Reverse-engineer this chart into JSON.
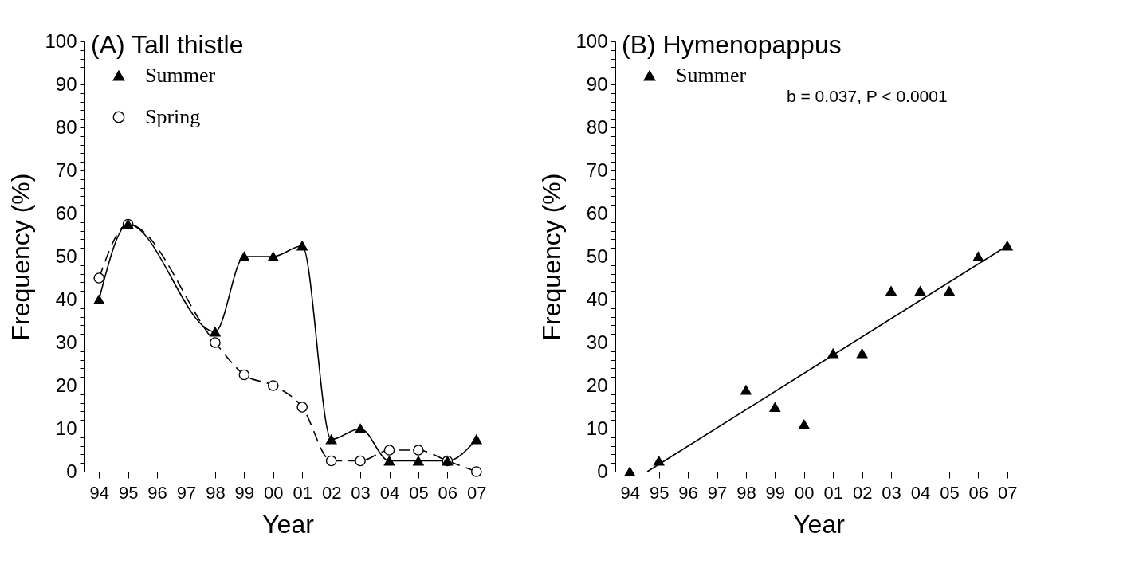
{
  "chart_data": [
    {
      "type": "line",
      "title": "(A) Tall thistle",
      "xlabel": "Year",
      "ylabel": "Frequency (%)",
      "xlim": [
        1993.5,
        2007.5
      ],
      "xticks": [
        {
          "value": 1994,
          "label": "94"
        },
        {
          "value": 1995,
          "label": "95"
        },
        {
          "value": 1996,
          "label": "96"
        },
        {
          "value": 1997,
          "label": "97"
        },
        {
          "value": 1998,
          "label": "98"
        },
        {
          "value": 1999,
          "label": "99"
        },
        {
          "value": 2000,
          "label": "00"
        },
        {
          "value": 2001,
          "label": "01"
        },
        {
          "value": 2002,
          "label": "02"
        },
        {
          "value": 2003,
          "label": "03"
        },
        {
          "value": 2004,
          "label": "04"
        },
        {
          "value": 2005,
          "label": "05"
        },
        {
          "value": 2006,
          "label": "06"
        },
        {
          "value": 2007,
          "label": "07"
        }
      ],
      "ylim": [
        0,
        100
      ],
      "yticks": [
        0,
        {
          "value": 2,
          "label": null
        },
        {
          "value": 4,
          "label": null
        },
        {
          "value": 6,
          "label": null
        },
        {
          "value": 8,
          "label": null
        },
        10,
        {
          "value": 12,
          "label": null
        },
        {
          "value": 14,
          "label": null
        },
        {
          "value": 16,
          "label": null
        },
        {
          "value": 18,
          "label": null
        },
        20,
        {
          "value": 22,
          "label": null
        },
        {
          "value": 24,
          "label": null
        },
        {
          "value": 26,
          "label": null
        },
        {
          "value": 28,
          "label": null
        },
        30,
        {
          "value": 32,
          "label": null
        },
        {
          "value": 34,
          "label": null
        },
        {
          "value": 36,
          "label": null
        },
        {
          "value": 38,
          "label": null
        },
        40,
        {
          "value": 42,
          "label": null
        },
        {
          "value": 44,
          "label": null
        },
        {
          "value": 46,
          "label": null
        },
        {
          "value": 48,
          "label": null
        },
        50,
        {
          "value": 52,
          "label": null
        },
        {
          "value": 54,
          "label": null
        },
        {
          "value": 56,
          "label": null
        },
        {
          "value": 58,
          "label": null
        },
        60,
        {
          "value": 62,
          "label": null
        },
        {
          "value": 64,
          "label": null
        },
        {
          "value": 66,
          "label": null
        },
        {
          "value": 68,
          "label": null
        },
        70,
        {
          "value": 72,
          "label": null
        },
        {
          "value": 74,
          "label": null
        },
        {
          "value": 76,
          "label": null
        },
        {
          "value": 78,
          "label": null
        },
        80,
        {
          "value": 82,
          "label": null
        },
        {
          "value": 84,
          "label": null
        },
        {
          "value": 86,
          "label": null
        },
        {
          "value": 88,
          "label": null
        },
        90,
        {
          "value": 92,
          "label": null
        },
        {
          "value": 94,
          "label": null
        },
        {
          "value": 96,
          "label": null
        },
        {
          "value": 98,
          "label": null
        },
        100
      ],
      "legend": "top left",
      "series": [
        {
          "name": "Summer",
          "color": "#000000",
          "marker": "triangle",
          "line_style": "solid",
          "x": [
            1994,
            1995,
            1998,
            1999,
            2000,
            2001,
            2002,
            2003,
            2004,
            2005,
            2006,
            2007
          ],
          "values": [
            40,
            57.5,
            32.5,
            50,
            50,
            52.5,
            7.5,
            10,
            2.5,
            2.5,
            2.5,
            7.5
          ]
        },
        {
          "name": "Spring",
          "color": "#000000",
          "marker": "circle",
          "line_style": "dashed",
          "x": [
            1994,
            1995,
            1998,
            1999,
            2000,
            2001,
            2002,
            2003,
            2004,
            2005,
            2006,
            2007
          ],
          "values": [
            45,
            57.5,
            30,
            22.5,
            20,
            15,
            2.5,
            2.5,
            5,
            5,
            2.5,
            0
          ]
        }
      ]
    },
    {
      "type": "scatter",
      "title": "(B) Hymenopappus",
      "xlabel": "Year",
      "ylabel": "Frequency (%)",
      "xlim": [
        1993.5,
        2007.5
      ],
      "xticks": [
        {
          "value": 1994,
          "label": "94"
        },
        {
          "value": 1995,
          "label": "95"
        },
        {
          "value": 1996,
          "label": "96"
        },
        {
          "value": 1997,
          "label": "97"
        },
        {
          "value": 1998,
          "label": "98"
        },
        {
          "value": 1999,
          "label": "99"
        },
        {
          "value": 2000,
          "label": "00"
        },
        {
          "value": 2001,
          "label": "01"
        },
        {
          "value": 2002,
          "label": "02"
        },
        {
          "value": 2003,
          "label": "03"
        },
        {
          "value": 2004,
          "label": "04"
        },
        {
          "value": 2005,
          "label": "05"
        },
        {
          "value": 2006,
          "label": "06"
        },
        {
          "value": 2007,
          "label": "07"
        }
      ],
      "ylim": [
        0,
        100
      ],
      "yticks": [
        0,
        {
          "value": 2,
          "label": null
        },
        {
          "value": 4,
          "label": null
        },
        {
          "value": 6,
          "label": null
        },
        {
          "value": 8,
          "label": null
        },
        10,
        {
          "value": 12,
          "label": null
        },
        {
          "value": 14,
          "label": null
        },
        {
          "value": 16,
          "label": null
        },
        {
          "value": 18,
          "label": null
        },
        20,
        {
          "value": 22,
          "label": null
        },
        {
          "value": 24,
          "label": null
        },
        {
          "value": 26,
          "label": null
        },
        {
          "value": 28,
          "label": null
        },
        30,
        {
          "value": 32,
          "label": null
        },
        {
          "value": 34,
          "label": null
        },
        {
          "value": 36,
          "label": null
        },
        {
          "value": 38,
          "label": null
        },
        40,
        {
          "value": 42,
          "label": null
        },
        {
          "value": 44,
          "label": null
        },
        {
          "value": 46,
          "label": null
        },
        {
          "value": 48,
          "label": null
        },
        50,
        {
          "value": 52,
          "label": null
        },
        {
          "value": 54,
          "label": null
        },
        {
          "value": 56,
          "label": null
        },
        {
          "value": 58,
          "label": null
        },
        60,
        {
          "value": 62,
          "label": null
        },
        {
          "value": 64,
          "label": null
        },
        {
          "value": 66,
          "label": null
        },
        {
          "value": 68,
          "label": null
        },
        70,
        {
          "value": 72,
          "label": null
        },
        {
          "value": 74,
          "label": null
        },
        {
          "value": 76,
          "label": null
        },
        {
          "value": 78,
          "label": null
        },
        80,
        {
          "value": 82,
          "label": null
        },
        {
          "value": 84,
          "label": null
        },
        {
          "value": 86,
          "label": null
        },
        {
          "value": 88,
          "label": null
        },
        90,
        {
          "value": 92,
          "label": null
        },
        {
          "value": 94,
          "label": null
        },
        {
          "value": 96,
          "label": null
        },
        {
          "value": 98,
          "label": null
        },
        100
      ],
      "legend": "top left",
      "annotations": [
        "b = 0.037, P < 0.0001"
      ],
      "series": [
        {
          "name": "Summer",
          "color": "#000000",
          "marker": "triangle",
          "x": [
            1994,
            1995,
            1998,
            1999,
            2000,
            2001,
            2002,
            2003,
            2004,
            2005,
            2006,
            2007
          ],
          "values": [
            0,
            2.5,
            19,
            15,
            11,
            27.5,
            27.5,
            42,
            42,
            42,
            50,
            52.5
          ]
        },
        {
          "type": "line",
          "color": "#000000",
          "marker": "none",
          "line_style": "solid",
          "x": [
            1994.6,
            2007
          ],
          "values": [
            0,
            52.5
          ]
        }
      ]
    }
  ]
}
